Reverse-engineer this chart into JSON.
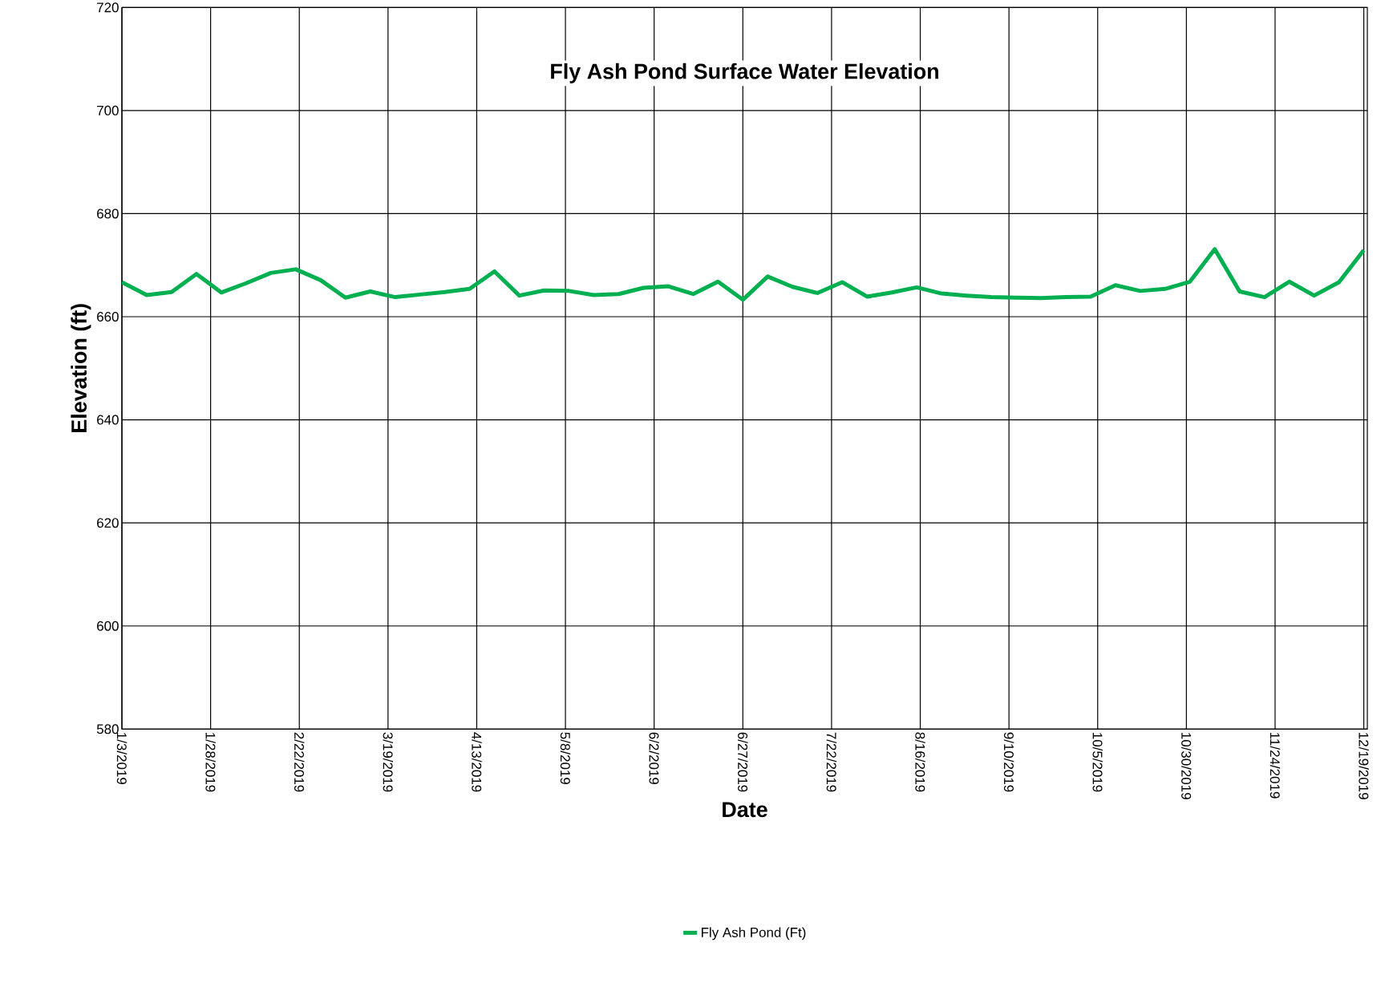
{
  "chart_data": {
    "type": "line",
    "title": "Fly Ash Pond Surface Water Elevation",
    "xlabel": "Date",
    "ylabel": "Elevation (ft)",
    "x": [
      "2019-01-03",
      "2019-01-10",
      "2019-01-17",
      "2019-01-24",
      "2019-01-31",
      "2019-02-07",
      "2019-02-14",
      "2019-02-21",
      "2019-02-28",
      "2019-03-07",
      "2019-03-14",
      "2019-03-21",
      "2019-03-28",
      "2019-04-04",
      "2019-04-11",
      "2019-04-18",
      "2019-04-25",
      "2019-05-02",
      "2019-05-09",
      "2019-05-16",
      "2019-05-23",
      "2019-05-30",
      "2019-06-06",
      "2019-06-13",
      "2019-06-20",
      "2019-06-27",
      "2019-07-04",
      "2019-07-11",
      "2019-07-18",
      "2019-07-25",
      "2019-08-01",
      "2019-08-08",
      "2019-08-15",
      "2019-08-22",
      "2019-08-29",
      "2019-09-05",
      "2019-09-12",
      "2019-09-19",
      "2019-09-26",
      "2019-10-03",
      "2019-10-10",
      "2019-10-17",
      "2019-10-24",
      "2019-10-31",
      "2019-11-07",
      "2019-11-14",
      "2019-11-21",
      "2019-11-28",
      "2019-12-05",
      "2019-12-12",
      "2019-12-19"
    ],
    "series": [
      {
        "name": "Fly Ash Pond (Ft)",
        "color": "#00b050",
        "values": [
          666.7,
          664.2,
          664.8,
          668.3,
          664.7,
          666.5,
          668.5,
          669.2,
          667.1,
          663.7,
          664.9,
          663.8,
          664.3,
          664.8,
          665.4,
          668.8,
          664.1,
          665.1,
          665.0,
          664.2,
          664.4,
          665.6,
          665.9,
          664.4,
          666.8,
          663.3,
          667.8,
          665.8,
          664.6,
          666.7,
          663.9,
          664.7,
          665.7,
          664.5,
          664.1,
          663.8,
          663.7,
          663.6,
          663.8,
          663.9,
          666.1,
          665.0,
          665.4,
          666.8,
          673.1,
          664.9,
          663.8,
          666.8,
          664.1,
          666.7,
          672.9
        ]
      }
    ],
    "xlim": [
      "2019-01-03",
      "2019-12-20"
    ],
    "xticks": [
      {
        "value": "2019-01-03",
        "label": "1/3/2019"
      },
      {
        "value": "2019-01-28",
        "label": "1/28/2019"
      },
      {
        "value": "2019-02-22",
        "label": "2/22/2019"
      },
      {
        "value": "2019-03-19",
        "label": "3/19/2019"
      },
      {
        "value": "2019-04-13",
        "label": "4/13/2019"
      },
      {
        "value": "2019-05-08",
        "label": "5/8/2019"
      },
      {
        "value": "2019-06-02",
        "label": "6/2/2019"
      },
      {
        "value": "2019-06-27",
        "label": "6/27/2019"
      },
      {
        "value": "2019-07-22",
        "label": "7/22/2019"
      },
      {
        "value": "2019-08-16",
        "label": "8/16/2019"
      },
      {
        "value": "2019-09-10",
        "label": "9/10/2019"
      },
      {
        "value": "2019-10-05",
        "label": "10/5/2019"
      },
      {
        "value": "2019-10-30",
        "label": "10/30/2019"
      },
      {
        "value": "2019-11-24",
        "label": "11/24/2019"
      },
      {
        "value": "2019-12-19",
        "label": "12/19/2019"
      }
    ],
    "ylim": [
      580,
      720
    ],
    "yticks": [
      580,
      600,
      620,
      640,
      660,
      680,
      700,
      720
    ],
    "grid": true,
    "legend": "bottom",
    "marker": "none",
    "line_style": "solid"
  }
}
